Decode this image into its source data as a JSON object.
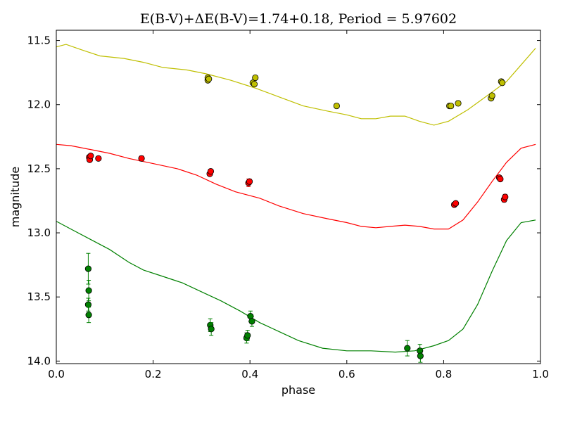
{
  "chart_data": {
    "type": "scatter",
    "title": "E(B-V)+ΔE(B-V)=1.74+0.18, Period = 5.97602",
    "xlabel": "phase",
    "ylabel": "magnitude",
    "xlim": [
      0.0,
      1.0
    ],
    "ylim": [
      14.02,
      11.42
    ],
    "y_inverted": true,
    "grid": false,
    "legend": "none",
    "x_ticks": [
      "0.0",
      "0.2",
      "0.4",
      "0.6",
      "0.8",
      "1.0"
    ],
    "x_tick_values": [
      0.0,
      0.2,
      0.4,
      0.6,
      0.8,
      1.0
    ],
    "y_ticks": [
      "11.5",
      "12.0",
      "12.5",
      "13.0",
      "13.5",
      "14.0"
    ],
    "y_tick_values": [
      11.5,
      12.0,
      12.5,
      13.0,
      13.5,
      14.0
    ],
    "series": [
      {
        "color": "#bfbf00",
        "fit_curve": [
          [
            0.0,
            11.55
          ],
          [
            0.02,
            11.53
          ],
          [
            0.05,
            11.57
          ],
          [
            0.09,
            11.62
          ],
          [
            0.14,
            11.64
          ],
          [
            0.18,
            11.67
          ],
          [
            0.22,
            11.71
          ],
          [
            0.27,
            11.73
          ],
          [
            0.31,
            11.76
          ],
          [
            0.36,
            11.81
          ],
          [
            0.41,
            11.87
          ],
          [
            0.46,
            11.94
          ],
          [
            0.51,
            12.01
          ],
          [
            0.56,
            12.05
          ],
          [
            0.6,
            12.08
          ],
          [
            0.63,
            12.11
          ],
          [
            0.66,
            12.11
          ],
          [
            0.69,
            12.09
          ],
          [
            0.72,
            12.09
          ],
          [
            0.75,
            12.13
          ],
          [
            0.78,
            12.16
          ],
          [
            0.81,
            12.13
          ],
          [
            0.85,
            12.04
          ],
          [
            0.89,
            11.93
          ],
          [
            0.93,
            11.82
          ],
          [
            0.96,
            11.69
          ],
          [
            0.99,
            11.56
          ]
        ],
        "points": [
          {
            "x": 0.313,
            "y": 11.81,
            "err": 0.01
          },
          {
            "x": 0.313,
            "y": 11.79,
            "err": 0.01
          },
          {
            "x": 0.315,
            "y": 11.8,
            "err": 0.01
          },
          {
            "x": 0.406,
            "y": 11.83,
            "err": 0.01
          },
          {
            "x": 0.409,
            "y": 11.84,
            "err": 0.01
          },
          {
            "x": 0.411,
            "y": 11.79,
            "err": 0.01
          },
          {
            "x": 0.579,
            "y": 12.01,
            "err": 0.01
          },
          {
            "x": 0.812,
            "y": 12.01,
            "err": 0.01
          },
          {
            "x": 0.815,
            "y": 12.01,
            "err": 0.01
          },
          {
            "x": 0.83,
            "y": 11.99,
            "err": 0.02
          },
          {
            "x": 0.898,
            "y": 11.95,
            "err": 0.01
          },
          {
            "x": 0.9,
            "y": 11.93,
            "err": 0.01
          },
          {
            "x": 0.919,
            "y": 11.82,
            "err": 0.01
          },
          {
            "x": 0.921,
            "y": 11.83,
            "err": 0.01
          }
        ]
      },
      {
        "color": "#ff0000",
        "fit_curve": [
          [
            0.0,
            12.31
          ],
          [
            0.03,
            12.32
          ],
          [
            0.07,
            12.35
          ],
          [
            0.11,
            12.38
          ],
          [
            0.15,
            12.42
          ],
          [
            0.2,
            12.46
          ],
          [
            0.25,
            12.5
          ],
          [
            0.29,
            12.55
          ],
          [
            0.33,
            12.62
          ],
          [
            0.37,
            12.68
          ],
          [
            0.42,
            12.73
          ],
          [
            0.46,
            12.79
          ],
          [
            0.51,
            12.85
          ],
          [
            0.56,
            12.89
          ],
          [
            0.6,
            12.92
          ],
          [
            0.63,
            12.95
          ],
          [
            0.66,
            12.96
          ],
          [
            0.69,
            12.95
          ],
          [
            0.72,
            12.94
          ],
          [
            0.75,
            12.95
          ],
          [
            0.78,
            12.97
          ],
          [
            0.81,
            12.97
          ],
          [
            0.84,
            12.9
          ],
          [
            0.87,
            12.76
          ],
          [
            0.9,
            12.6
          ],
          [
            0.93,
            12.45
          ],
          [
            0.96,
            12.34
          ],
          [
            0.99,
            12.31
          ]
        ],
        "points": [
          {
            "x": 0.068,
            "y": 12.41,
            "err": 0.01
          },
          {
            "x": 0.069,
            "y": 12.43,
            "err": 0.01
          },
          {
            "x": 0.071,
            "y": 12.4,
            "err": 0.01
          },
          {
            "x": 0.087,
            "y": 12.42,
            "err": 0.01
          },
          {
            "x": 0.176,
            "y": 12.42,
            "err": 0.02
          },
          {
            "x": 0.317,
            "y": 12.54,
            "err": 0.01
          },
          {
            "x": 0.319,
            "y": 12.52,
            "err": 0.01
          },
          {
            "x": 0.397,
            "y": 12.61,
            "err": 0.03
          },
          {
            "x": 0.399,
            "y": 12.6,
            "err": 0.02
          },
          {
            "x": 0.822,
            "y": 12.78,
            "err": 0.01
          },
          {
            "x": 0.825,
            "y": 12.77,
            "err": 0.01
          },
          {
            "x": 0.915,
            "y": 12.57,
            "err": 0.01
          },
          {
            "x": 0.917,
            "y": 12.58,
            "err": 0.01
          },
          {
            "x": 0.925,
            "y": 12.74,
            "err": 0.02
          },
          {
            "x": 0.927,
            "y": 12.72,
            "err": 0.02
          }
        ]
      },
      {
        "color": "#008000",
        "fit_curve": [
          [
            0.0,
            12.91
          ],
          [
            0.03,
            12.97
          ],
          [
            0.07,
            13.05
          ],
          [
            0.11,
            13.13
          ],
          [
            0.15,
            13.23
          ],
          [
            0.18,
            13.29
          ],
          [
            0.22,
            13.34
          ],
          [
            0.26,
            13.39
          ],
          [
            0.3,
            13.46
          ],
          [
            0.34,
            13.53
          ],
          [
            0.38,
            13.61
          ],
          [
            0.42,
            13.7
          ],
          [
            0.46,
            13.77
          ],
          [
            0.5,
            13.84
          ],
          [
            0.55,
            13.9
          ],
          [
            0.6,
            13.92
          ],
          [
            0.65,
            13.92
          ],
          [
            0.7,
            13.93
          ],
          [
            0.74,
            13.92
          ],
          [
            0.78,
            13.88
          ],
          [
            0.81,
            13.84
          ],
          [
            0.84,
            13.75
          ],
          [
            0.87,
            13.56
          ],
          [
            0.9,
            13.3
          ],
          [
            0.93,
            13.06
          ],
          [
            0.96,
            12.92
          ],
          [
            0.99,
            12.9
          ]
        ],
        "points": [
          {
            "x": 0.066,
            "y": 13.28,
            "err": 0.12
          },
          {
            "x": 0.067,
            "y": 13.45,
            "err": 0.08
          },
          {
            "x": 0.066,
            "y": 13.56,
            "err": 0.05
          },
          {
            "x": 0.067,
            "y": 13.64,
            "err": 0.06
          },
          {
            "x": 0.318,
            "y": 13.72,
            "err": 0.05
          },
          {
            "x": 0.32,
            "y": 13.75,
            "err": 0.05
          },
          {
            "x": 0.393,
            "y": 13.82,
            "err": 0.04
          },
          {
            "x": 0.395,
            "y": 13.8,
            "err": 0.04
          },
          {
            "x": 0.401,
            "y": 13.65,
            "err": 0.04
          },
          {
            "x": 0.404,
            "y": 13.69,
            "err": 0.04
          },
          {
            "x": 0.725,
            "y": 13.9,
            "err": 0.06
          },
          {
            "x": 0.751,
            "y": 13.92,
            "err": 0.05
          },
          {
            "x": 0.752,
            "y": 13.96,
            "err": 0.05
          }
        ]
      }
    ]
  }
}
